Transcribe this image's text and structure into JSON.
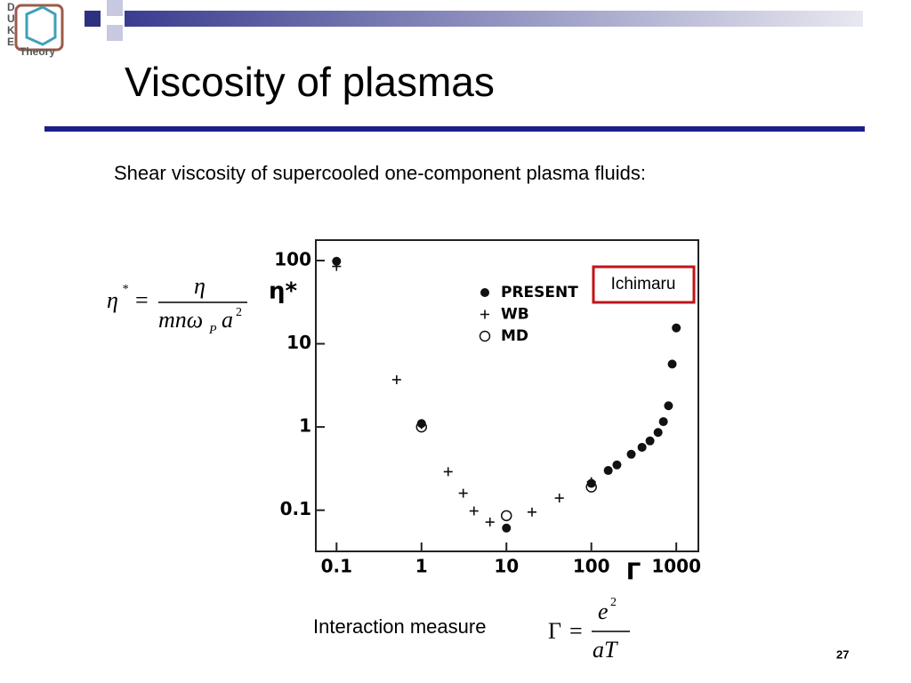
{
  "logo": {
    "letters": [
      "D",
      "U",
      "K",
      "E"
    ],
    "text": "Theory"
  },
  "header": {
    "title": "Viscosity of plasmas"
  },
  "subtitle": "Shear viscosity of supercooled one-component plasma fluids:",
  "eta_formula": {
    "lhs": "η",
    "star": "*",
    "equals": "=",
    "numerator": "η",
    "denominator": "mnω",
    "subscript": "P",
    "denominator_tail": "a",
    "power": "2"
  },
  "gamma_formula": {
    "lhs": "Γ",
    "equals": "=",
    "numerator": "e",
    "power": "2",
    "denominator": "aT"
  },
  "footer": {
    "label": "Interaction measure",
    "page_number": "27"
  },
  "chart_data": {
    "type": "scatter",
    "xlabel": "Γ",
    "ylabel": "η*",
    "xscale": "log",
    "yscale": "log",
    "xlim": [
      0.057,
      1820
    ],
    "ylim": [
      0.032,
      176
    ],
    "xticks": [
      0.1,
      1,
      10,
      100,
      1000
    ],
    "yticks": [
      0.1,
      1,
      10,
      100
    ],
    "legend": "top-center",
    "annotation": "Ichimaru",
    "series": [
      {
        "name": "PRESENT",
        "color": "#111111",
        "marker": "dot",
        "x": [
          0.1,
          1,
          10,
          100,
          158,
          200,
          295,
          395,
          490,
          610,
          705,
          810,
          895,
          1000
        ],
        "values": [
          98,
          1.1,
          0.061,
          0.21,
          0.3,
          0.35,
          0.47,
          0.57,
          0.68,
          0.86,
          1.16,
          1.8,
          5.7,
          15.5
        ]
      },
      {
        "name": "WB",
        "color": "#111111",
        "marker": "plus",
        "x": [
          0.1,
          0.51,
          1,
          2.06,
          3.1,
          4.15,
          6.4,
          20,
          42,
          100
        ],
        "values": [
          85,
          3.7,
          1.07,
          0.29,
          0.16,
          0.098,
          0.072,
          0.095,
          0.14,
          0.22
        ]
      },
      {
        "name": "MD",
        "color": "#111111",
        "marker": "circle",
        "x": [
          1,
          10,
          100
        ],
        "values": [
          1.0,
          0.086,
          0.19
        ]
      }
    ]
  }
}
